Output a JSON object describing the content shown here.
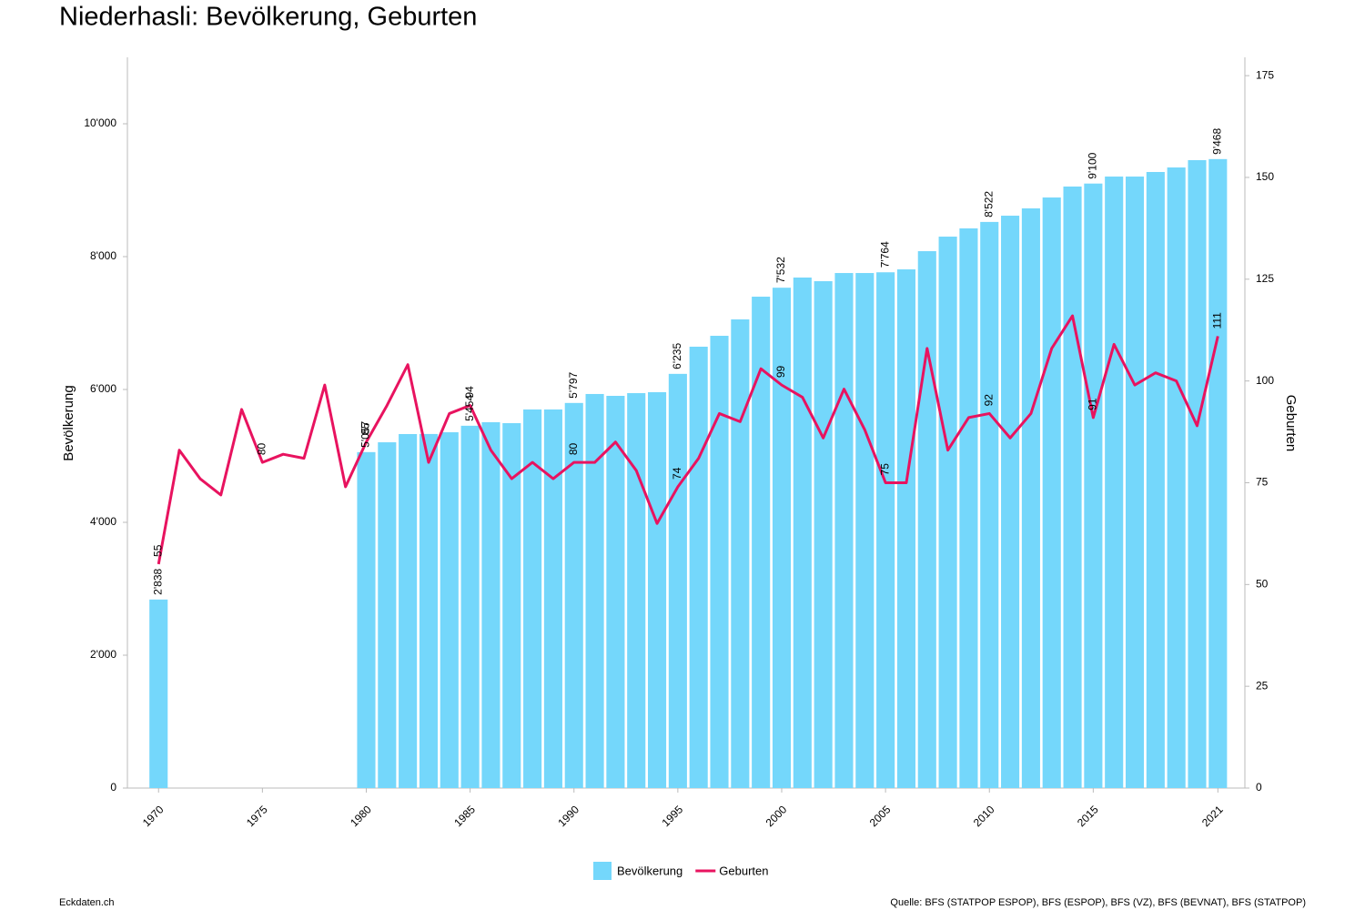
{
  "chart_data": {
    "type": "bar",
    "title": "Niederhasli: Bevölkerung, Geburten",
    "ylabel": "Bevölkerung",
    "y2label": "Geburten",
    "x": [
      1970,
      1971,
      1972,
      1973,
      1974,
      1975,
      1976,
      1977,
      1978,
      1979,
      1980,
      1981,
      1982,
      1983,
      1984,
      1985,
      1986,
      1987,
      1988,
      1989,
      1990,
      1991,
      1992,
      1993,
      1994,
      1995,
      1996,
      1997,
      1998,
      1999,
      2000,
      2001,
      2002,
      2003,
      2004,
      2005,
      2006,
      2007,
      2008,
      2009,
      2010,
      2011,
      2012,
      2013,
      2014,
      2015,
      2016,
      2017,
      2018,
      2019,
      2020,
      2021
    ],
    "series": [
      {
        "name": "Bevölkerung",
        "type": "bar",
        "color": "#74d7fb",
        "values": [
          2838,
          null,
          null,
          null,
          null,
          null,
          null,
          null,
          null,
          null,
          5057,
          5205,
          5329,
          5330,
          5356,
          5454,
          5507,
          5493,
          5699,
          5699,
          5797,
          5932,
          5904,
          5945,
          5959,
          6235,
          6644,
          6808,
          7055,
          7397,
          7532,
          7685,
          7630,
          7753,
          7753,
          7764,
          7808,
          8082,
          8301,
          8425,
          8522,
          8616,
          8726,
          8890,
          9055,
          9100,
          9205,
          9205,
          9274,
          9342,
          9452,
          9468
        ],
        "value_labels": [
          "2'838",
          null,
          null,
          null,
          null,
          null,
          null,
          null,
          null,
          null,
          "5'057",
          null,
          null,
          null,
          null,
          "5'454",
          null,
          null,
          null,
          null,
          "5'797",
          null,
          null,
          null,
          null,
          "6'235",
          null,
          null,
          null,
          null,
          "7'532",
          null,
          null,
          null,
          null,
          "7'764",
          null,
          null,
          null,
          null,
          "8'522",
          null,
          null,
          null,
          null,
          "9'100",
          null,
          null,
          null,
          null,
          null,
          "9'468"
        ]
      },
      {
        "name": "Geburten",
        "type": "line",
        "axis": "y2",
        "color": "#e8135f",
        "values": [
          55,
          83,
          76,
          72,
          93,
          80,
          82,
          81,
          99,
          74,
          85,
          94,
          104,
          80,
          92,
          94,
          83,
          76,
          80,
          76,
          80,
          80,
          85,
          78,
          65,
          74,
          81,
          92,
          90,
          103,
          99,
          96,
          86,
          98,
          88,
          75,
          75,
          108,
          83,
          91,
          92,
          86,
          92,
          108,
          116,
          91,
          109,
          99,
          102,
          100,
          89,
          111
        ],
        "value_labels": [
          "55",
          null,
          null,
          null,
          null,
          "80",
          null,
          null,
          null,
          null,
          "85",
          null,
          null,
          null,
          null,
          "94",
          null,
          null,
          null,
          null,
          "80",
          null,
          null,
          null,
          null,
          "74",
          null,
          null,
          null,
          null,
          "99",
          null,
          null,
          null,
          null,
          "75",
          null,
          null,
          null,
          null,
          "92",
          null,
          null,
          null,
          null,
          "91",
          null,
          null,
          null,
          null,
          null,
          "111"
        ]
      }
    ],
    "xlim": [
      1968.5,
      2022.3
    ],
    "xticks": [
      1970,
      1975,
      1980,
      1985,
      1990,
      1995,
      2000,
      2005,
      2010,
      2015,
      2021
    ],
    "ylim": [
      0,
      11000
    ],
    "yticks": [
      0,
      {
        "value": 2000,
        "label": "2'000"
      },
      {
        "value": 4000,
        "label": "4'000"
      },
      {
        "value": 6000,
        "label": "6'000"
      },
      {
        "value": 8000,
        "label": "8'000"
      },
      {
        "value": 10000,
        "label": "10'000"
      }
    ],
    "y2lim": [
      0,
      179.5
    ],
    "y2ticks": [
      0,
      25,
      50,
      75,
      100,
      125,
      150,
      175
    ],
    "legend": "bottom"
  },
  "footer": {
    "left": "Eckdaten.ch",
    "right": "Quelle: BFS (STATPOP ESPOP), BFS (ESPOP), BFS (VZ), BFS (BEVNAT), BFS (STATPOP)"
  }
}
